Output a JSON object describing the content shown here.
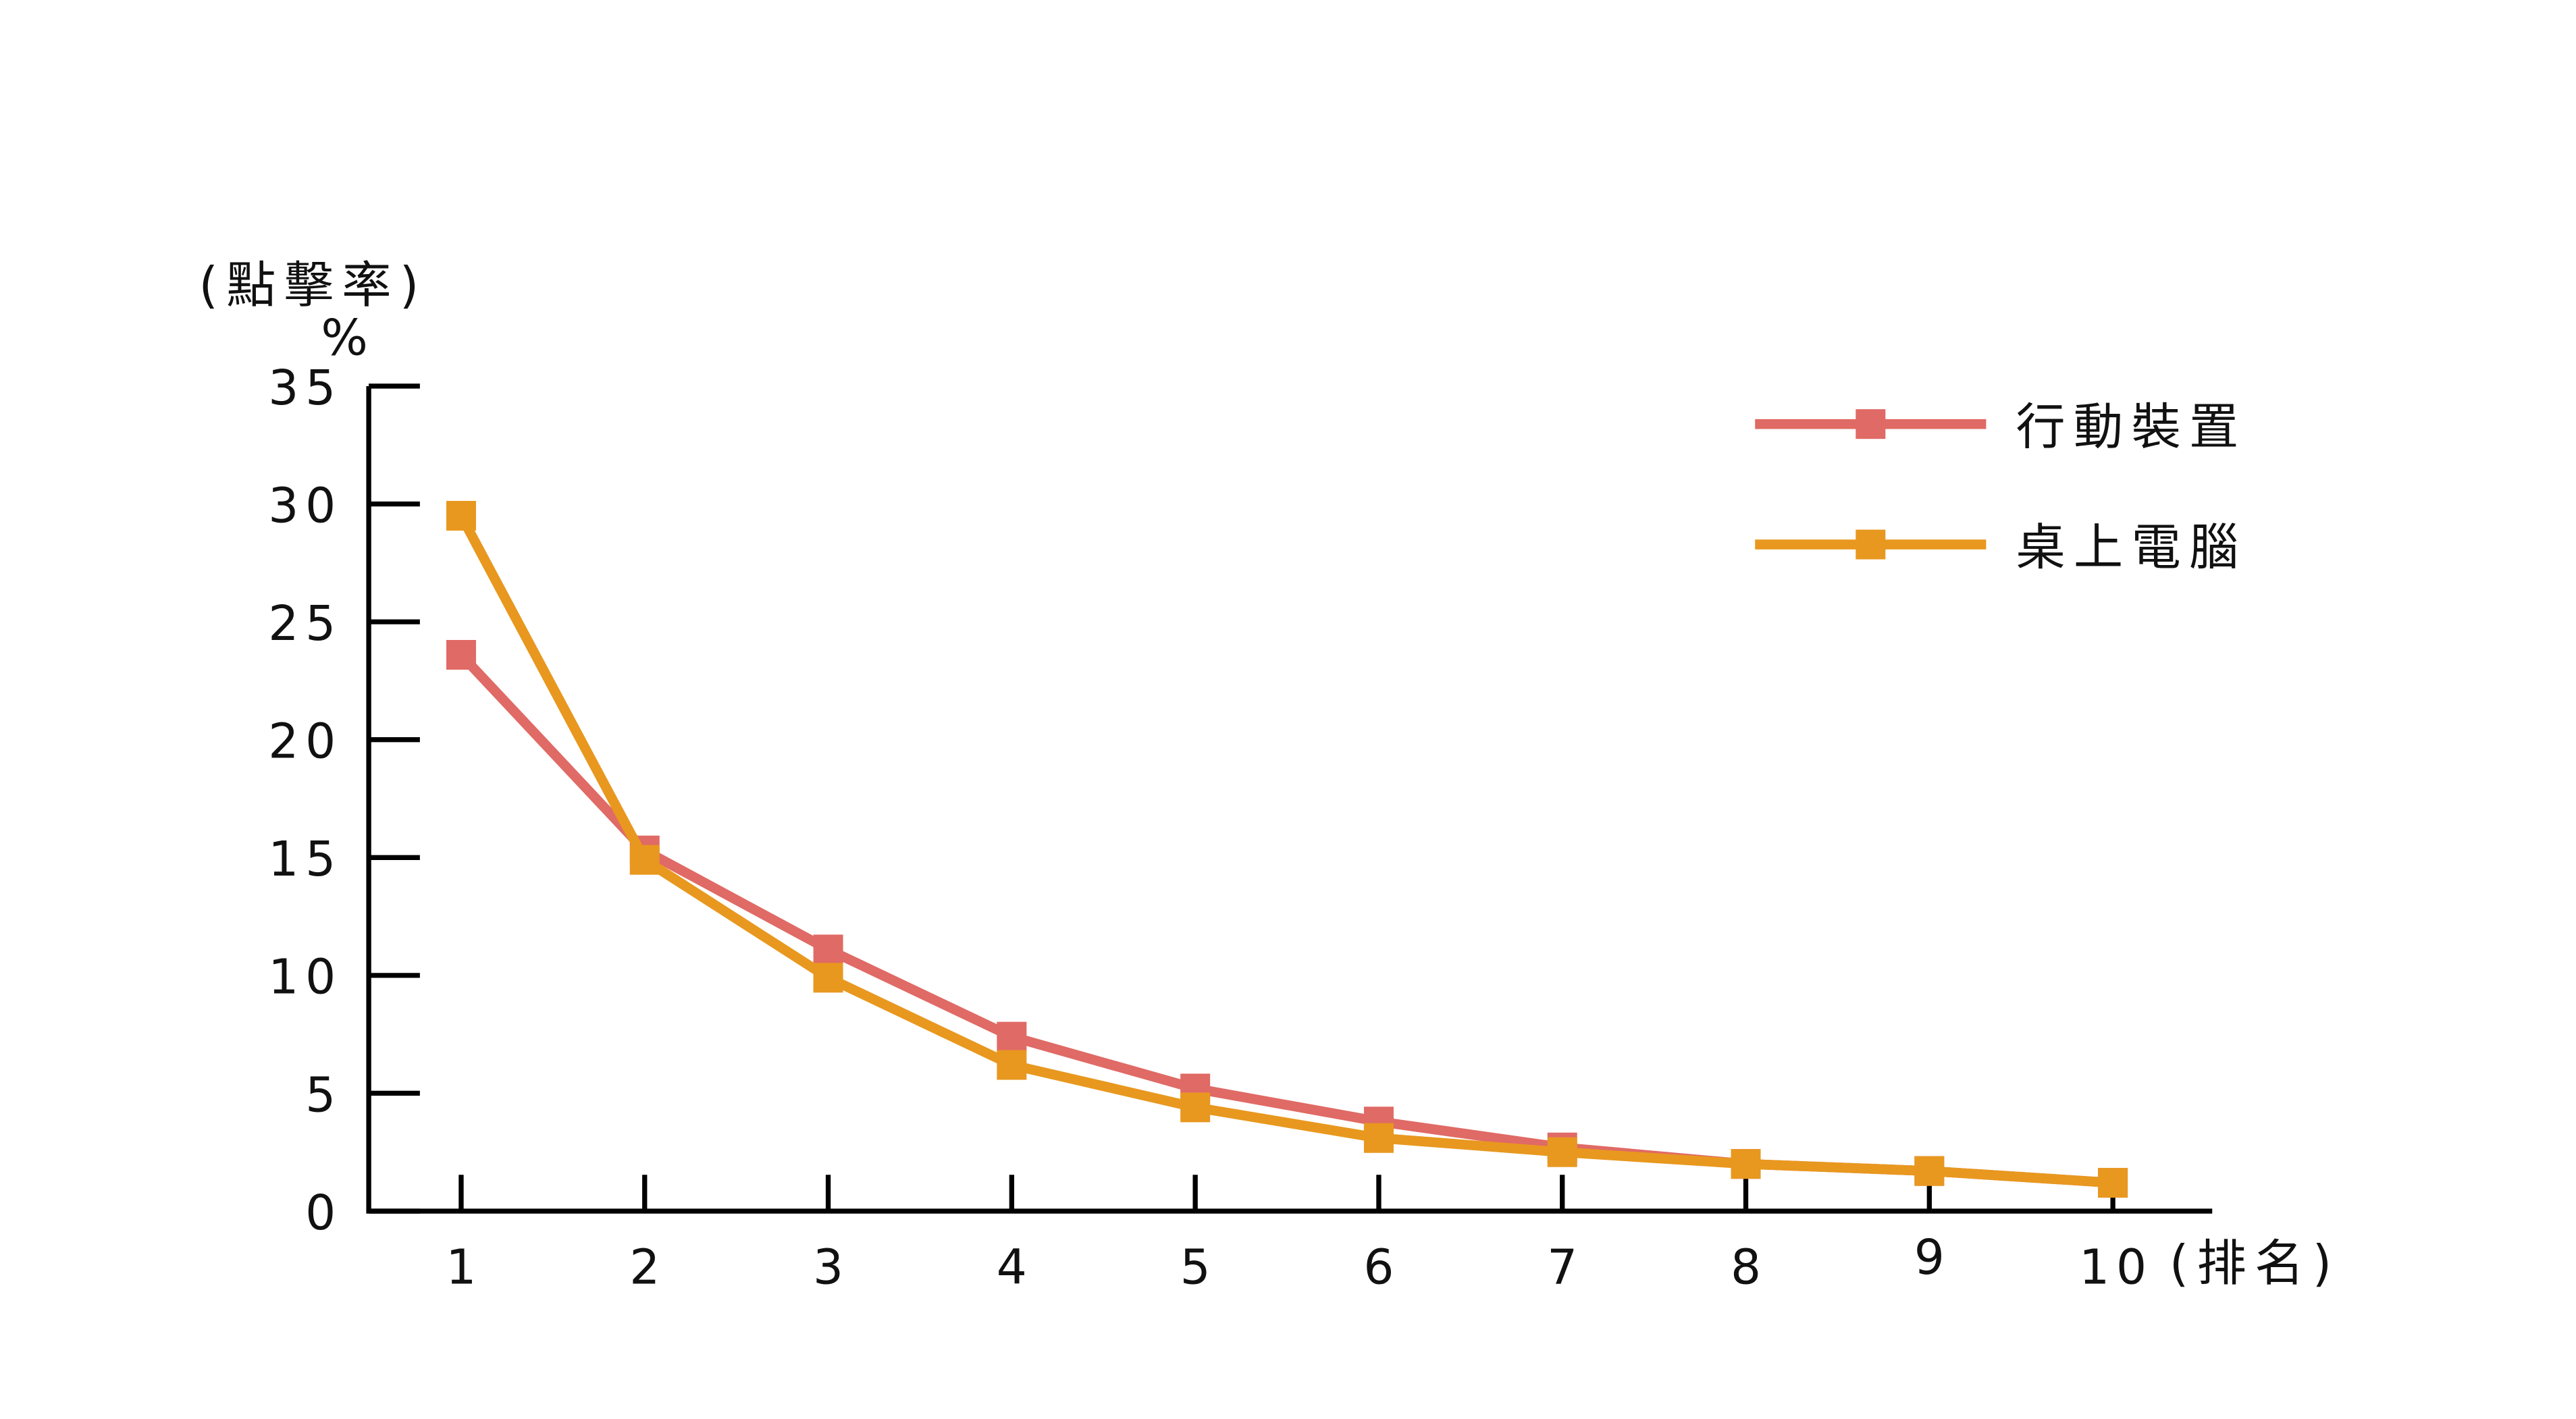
{
  "chart_data": {
    "type": "line",
    "title": "",
    "ylabel": "(點擊率)",
    "yunit": "%",
    "xlabel": "(排名)",
    "x": [
      1,
      2,
      3,
      4,
      5,
      6,
      7,
      8,
      9,
      10
    ],
    "x_tick_labels": [
      "1",
      "2",
      "3",
      "4",
      "5",
      "6",
      "7",
      "8",
      "9",
      "10"
    ],
    "ylim": [
      0,
      35
    ],
    "y_ticks": [
      0,
      5,
      10,
      15,
      20,
      25,
      30,
      35
    ],
    "y_tick_labels": [
      "0",
      "5",
      "10",
      "15",
      "20",
      "25",
      "30",
      "35"
    ],
    "grid": false,
    "legend_position": "top-right",
    "marker": "square",
    "series": [
      {
        "name": "行動裝置",
        "color": "#E06A65",
        "values": [
          23.6,
          15.3,
          11.1,
          7.4,
          5.2,
          3.8,
          2.7,
          2.0,
          1.7,
          1.2
        ]
      },
      {
        "name": "桌上電腦",
        "color": "#E8981F",
        "values": [
          29.5,
          14.9,
          9.9,
          6.2,
          4.4,
          3.1,
          2.5,
          2.0,
          1.7,
          1.2
        ]
      }
    ]
  }
}
